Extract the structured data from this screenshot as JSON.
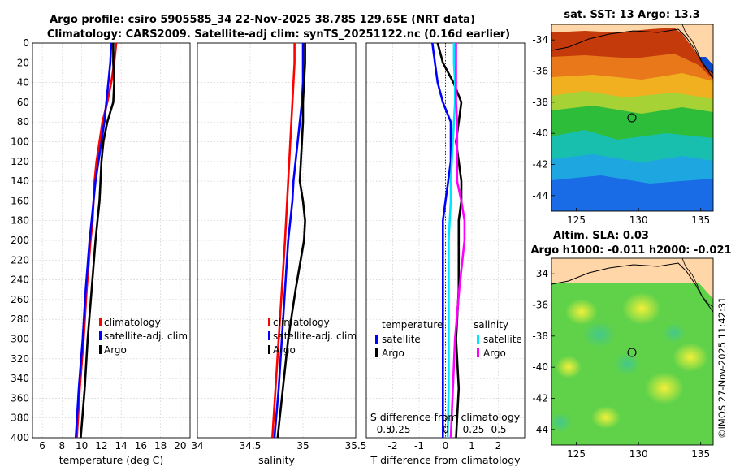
{
  "header": {
    "title_line1": "Argo profile: csiro 5905585_34 22-Nov-2025 38.78S 129.65E (NRT data)",
    "title_line2": "Climatology: CARS2009. Satellite-adj clim: synTS_20251122.nc (0.16d earlier)"
  },
  "watermark": "©IMOS 27-Nov-2025 11:42:31",
  "colors": {
    "climatology": "#ff0000",
    "satellite": "#0000ff",
    "argo": "#000000",
    "sal_satellite": "#00e5ff",
    "sal_argo": "#ff00ff"
  },
  "chart_data": [
    {
      "type": "line",
      "name": "temperature",
      "xlabel": "temperature (deg C)",
      "xlim": [
        5,
        21
      ],
      "xticks": [
        6,
        8,
        10,
        12,
        14,
        16,
        18,
        20
      ],
      "ylim": [
        0,
        400
      ],
      "yticks": [
        0,
        20,
        40,
        60,
        80,
        100,
        120,
        140,
        160,
        180,
        200,
        220,
        240,
        260,
        280,
        300,
        320,
        340,
        360,
        380,
        400
      ],
      "legend": [
        "climatology",
        "satellite-adj. clim",
        "Argo"
      ],
      "depth": [
        0,
        20,
        40,
        60,
        80,
        100,
        120,
        140,
        160,
        180,
        200,
        250,
        300,
        350,
        400
      ],
      "series": [
        {
          "name": "climatology",
          "values": [
            13.5,
            13.3,
            13.0,
            12.6,
            12.1,
            11.8,
            11.5,
            11.3,
            11.2,
            11.1,
            10.9,
            10.5,
            10.2,
            9.8,
            9.5
          ]
        },
        {
          "name": "satellite-adj. clim",
          "values": [
            13.0,
            12.9,
            12.7,
            12.5,
            12.3,
            12.0,
            11.7,
            11.4,
            11.2,
            11.0,
            10.8,
            10.4,
            10.1,
            9.7,
            9.4
          ]
        },
        {
          "name": "Argo",
          "values": [
            13.2,
            13.2,
            13.3,
            13.2,
            12.6,
            12.2,
            12.0,
            11.9,
            11.8,
            11.6,
            11.4,
            11.0,
            10.6,
            10.3,
            9.9
          ]
        }
      ]
    },
    {
      "type": "line",
      "name": "salinity",
      "xlabel": "salinity",
      "xlim": [
        34,
        35.5
      ],
      "xticks": [
        34,
        34.5,
        35,
        35.5
      ],
      "ylim": [
        0,
        400
      ],
      "legend": [
        "climatology",
        "satellite-adj. clim",
        "Argo"
      ],
      "depth": [
        0,
        20,
        40,
        60,
        80,
        100,
        120,
        140,
        160,
        180,
        200,
        250,
        300,
        350,
        400
      ],
      "series": [
        {
          "name": "climatology",
          "values": [
            34.92,
            34.92,
            34.91,
            34.9,
            34.89,
            34.88,
            34.87,
            34.86,
            34.85,
            34.84,
            34.83,
            34.8,
            34.77,
            34.74,
            34.71
          ]
        },
        {
          "name": "satellite-adj. clim",
          "values": [
            35.0,
            35.0,
            35.0,
            34.99,
            34.97,
            34.95,
            34.93,
            34.91,
            34.9,
            34.88,
            34.86,
            34.83,
            34.8,
            34.77,
            34.73
          ]
        },
        {
          "name": "Argo",
          "values": [
            35.02,
            35.02,
            35.01,
            35.0,
            35.0,
            34.99,
            34.98,
            34.97,
            35.0,
            35.02,
            35.01,
            34.93,
            34.86,
            34.81,
            34.76
          ]
        }
      ]
    },
    {
      "type": "line",
      "name": "difference",
      "xlabel": "T difference from climatology",
      "xlabel_top": "S difference from climatology",
      "xlim": [
        -3,
        3
      ],
      "xticks": [
        -2,
        -1,
        0,
        1,
        2
      ],
      "xticks_top": [
        "-0.5",
        "-0.25",
        "0",
        "0.25",
        "0.5"
      ],
      "ylim": [
        0,
        400
      ],
      "legend_temperature_title": "temperature",
      "legend_salinity_title": "salinity",
      "legend_temperature": [
        "satellite",
        "Argo"
      ],
      "legend_salinity": [
        "satellite",
        "Argo"
      ],
      "depth": [
        0,
        20,
        40,
        60,
        80,
        100,
        120,
        140,
        160,
        180,
        200,
        250,
        300,
        350,
        400
      ],
      "series": [
        {
          "name": "T satellite",
          "values": [
            -0.5,
            -0.4,
            -0.3,
            -0.1,
            0.2,
            0.2,
            0.2,
            0.1,
            0.0,
            -0.1,
            -0.1,
            -0.1,
            -0.1,
            -0.1,
            -0.1
          ]
        },
        {
          "name": "T Argo",
          "values": [
            -0.3,
            -0.1,
            0.3,
            0.6,
            0.5,
            0.4,
            0.5,
            0.6,
            0.6,
            0.5,
            0.5,
            0.5,
            0.4,
            0.5,
            0.4
          ]
        },
        {
          "name": "S satellite",
          "values": [
            0.08,
            0.08,
            0.09,
            0.09,
            0.08,
            0.07,
            0.06,
            0.05,
            0.05,
            0.04,
            0.03,
            0.03,
            0.03,
            0.03,
            0.02
          ]
        },
        {
          "name": "S Argo",
          "values": [
            0.1,
            0.1,
            0.1,
            0.1,
            0.11,
            0.11,
            0.11,
            0.11,
            0.15,
            0.18,
            0.18,
            0.13,
            0.09,
            0.07,
            0.05
          ]
        }
      ]
    },
    {
      "type": "heatmap",
      "name": "sst-map",
      "title": "sat. SST: 13 Argo: 13.3",
      "xticks": [
        125,
        130,
        135
      ],
      "yticks": [
        -34,
        -36,
        -38,
        -40,
        -42,
        -44
      ],
      "xlim": [
        123,
        136
      ],
      "ylim": [
        -45,
        -33
      ]
    },
    {
      "type": "heatmap",
      "name": "sla-map",
      "title_line1": "Altim. SLA: 0.03",
      "title_line2": "Argo h1000: -0.011 h2000: -0.021",
      "xticks": [
        125,
        130,
        135
      ],
      "yticks": [
        -34,
        -36,
        -38,
        -40,
        -42,
        -44
      ],
      "xlim": [
        123,
        136
      ],
      "ylim": [
        -45,
        -33
      ]
    }
  ]
}
